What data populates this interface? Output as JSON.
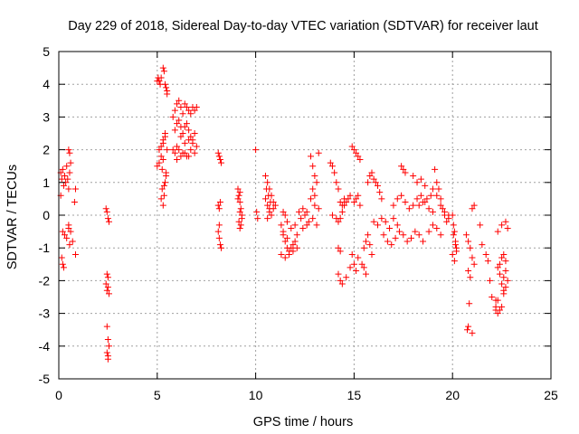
{
  "chart_data": {
    "type": "scatter",
    "title": "Day 229 of 2018, Sidereal Day-to-day VTEC variation (SDTVAR) for receiver laut",
    "xlabel": "GPS time / hours",
    "ylabel": "SDTVAR / TECUs",
    "xlim": [
      0,
      25
    ],
    "ylim": [
      -5,
      5
    ],
    "xticks": [
      "0",
      "5",
      "10",
      "15",
      "20",
      "25"
    ],
    "yticks": [
      "-5",
      "-4",
      "-3",
      "-2",
      "-1",
      "0",
      "1",
      "2",
      "3",
      "4",
      "5"
    ],
    "grid": true,
    "marker": "+",
    "color": "#ff0000",
    "series": [
      {
        "name": "SDTVAR",
        "x": [
          0.1,
          0.15,
          0.2,
          0.25,
          0.3,
          0.35,
          0.4,
          0.45,
          0.5,
          0.55,
          0.1,
          0.2,
          0.3,
          0.4,
          0.5,
          0.6,
          0.7,
          0.15,
          0.2,
          0.25,
          0.5,
          0.55,
          0.6,
          0.8,
          0.85,
          0.85,
          0.5,
          0.55,
          2.4,
          2.45,
          2.5,
          2.55,
          2.4,
          2.45,
          2.5,
          2.5,
          2.45,
          2.55,
          2.45,
          2.5,
          2.55,
          2.45,
          2.5,
          2.5,
          5.0,
          5.05,
          5.1,
          5.15,
          5.2,
          5.3,
          5.35,
          5.4,
          5.45,
          5.5,
          5.5,
          5.4,
          5.3,
          5.2,
          5.1,
          5.0,
          5.1,
          5.2,
          5.3,
          5.4,
          5.5,
          5.45,
          5.35,
          5.25,
          5.2,
          5.3,
          5.35,
          5.4,
          5.45,
          5.3,
          5.25,
          5.8,
          5.9,
          6.0,
          6.1,
          6.2,
          6.3,
          6.4,
          6.5,
          6.6,
          6.7,
          6.8,
          6.9,
          7.0,
          5.9,
          6.0,
          6.1,
          6.2,
          6.3,
          6.4,
          6.5,
          6.6,
          6.7,
          6.8,
          6.9,
          5.8,
          5.9,
          6.0,
          6.1,
          6.3,
          6.5,
          6.7,
          6.9,
          7.0,
          6.2,
          6.4,
          6.6,
          6.8,
          6.0,
          6.2,
          6.4,
          6.6,
          8.1,
          8.15,
          8.2,
          8.25,
          8.1,
          8.15,
          8.2,
          8.1,
          8.15,
          8.2,
          8.25,
          8.15,
          9.1,
          9.15,
          9.2,
          9.25,
          9.3,
          9.15,
          9.2,
          9.25,
          9.1,
          9.2,
          9.3,
          9.2,
          10.0,
          10.05,
          10.1,
          10.5,
          10.6,
          10.7,
          10.8,
          10.9,
          11.0,
          10.5,
          10.6,
          10.7,
          10.8,
          10.9,
          10.55,
          10.65,
          10.75,
          10.6,
          10.7,
          11.3,
          11.4,
          11.5,
          11.6,
          11.7,
          11.8,
          11.9,
          12.0,
          12.1,
          11.4,
          11.5,
          11.6,
          11.8,
          12.0,
          11.3,
          11.5,
          11.7,
          11.9,
          12.1,
          11.4,
          11.6,
          12.2,
          12.3,
          12.4,
          12.5,
          12.6,
          12.7,
          12.4,
          12.6,
          12.8,
          12.9,
          13.0,
          13.1,
          12.8,
          13.0,
          13.2,
          12.9,
          13.1,
          13.2,
          12.9,
          13.0,
          13.8,
          13.9,
          14.0,
          14.1,
          14.2,
          14.3,
          14.4,
          14.5,
          14.2,
          14.3,
          13.9,
          14.1,
          14.2,
          14.3,
          14.4,
          14.5,
          14.6,
          14.7,
          14.8,
          14.2,
          14.3,
          14.4,
          14.6,
          14.8,
          14.9,
          15.0,
          15.1,
          15.2,
          15.3,
          15.0,
          15.1,
          15.2,
          15.3,
          14.9,
          15.0,
          15.1,
          15.2,
          15.4,
          15.5,
          15.6,
          15.5,
          15.6,
          15.7,
          15.8,
          15.9,
          15.7,
          15.8,
          15.9,
          16.0,
          16.1,
          16.2,
          16.3,
          16.4,
          16.0,
          16.2,
          16.4,
          16.6,
          16.8,
          17.0,
          17.2,
          16.5,
          16.7,
          16.9,
          17.1,
          17.3,
          17.5,
          17.7,
          17.9,
          18.1,
          18.3,
          18.5,
          17.0,
          17.2,
          17.4,
          17.6,
          17.8,
          18.0,
          18.2,
          18.4,
          18.6,
          18.8,
          19.0,
          17.4,
          17.5,
          17.6,
          18.0,
          18.2,
          18.4,
          18.6,
          18.3,
          18.5,
          18.7,
          18.9,
          19.1,
          19.2,
          19.3,
          19.4,
          19.5,
          19.6,
          19.7,
          19.8,
          19.0,
          19.2,
          19.4,
          19.6,
          19.8,
          18.8,
          19.0,
          19.2,
          19.4,
          20.0,
          20.05,
          20.1,
          20.15,
          20.2,
          20.0,
          20.1,
          20.2,
          20.05,
          20.15,
          20.7,
          20.8,
          20.9,
          21.0,
          21.1,
          20.8,
          20.9,
          21.0,
          20.85,
          20.75,
          20.8,
          21.1,
          21.0,
          21.4,
          21.5,
          21.7,
          21.8,
          21.9,
          22.0,
          22.2,
          22.3,
          22.4,
          22.5,
          22.6,
          22.7,
          22.8,
          22.3,
          22.4,
          22.5,
          22.6,
          22.7,
          22.4,
          22.5,
          22.6,
          22.2,
          22.3,
          22.6,
          22.7,
          22.3,
          22.5,
          22.7,
          22.8,
          22.2
        ],
        "y": [
          1.3,
          1.1,
          1.4,
          0.9,
          1.2,
          1.0,
          1.5,
          1.1,
          0.8,
          1.3,
          0.6,
          -0.5,
          -0.6,
          -0.7,
          -0.3,
          -0.5,
          -0.8,
          -1.3,
          -1.5,
          -1.6,
          2.0,
          1.9,
          1.6,
          0.4,
          -1.2,
          0.8,
          -0.4,
          -0.9,
          0.2,
          0.1,
          -0.1,
          -0.2,
          -2.1,
          -2.3,
          -2.2,
          -1.9,
          -1.8,
          -2.4,
          -3.4,
          -3.8,
          -4.0,
          -4.2,
          -4.3,
          -4.4,
          4.1,
          4.2,
          4.1,
          4.0,
          4.2,
          4.5,
          4.4,
          4.0,
          3.9,
          3.7,
          3.8,
          2.5,
          2.3,
          2.1,
          2.0,
          1.5,
          1.6,
          1.8,
          2.2,
          2.4,
          2.0,
          1.2,
          0.9,
          0.8,
          0.5,
          0.3,
          0.6,
          1.0,
          1.3,
          1.7,
          1.4,
          3.0,
          3.2,
          3.4,
          3.5,
          3.3,
          3.1,
          3.4,
          3.3,
          3.2,
          3.1,
          3.3,
          3.2,
          3.3,
          2.6,
          2.8,
          2.9,
          2.7,
          2.5,
          2.7,
          2.8,
          2.6,
          2.4,
          2.3,
          2.5,
          2.0,
          1.9,
          2.1,
          2.0,
          1.9,
          1.8,
          2.0,
          1.9,
          2.1,
          2.4,
          2.2,
          2.3,
          2.2,
          1.7,
          1.8,
          1.9,
          1.8,
          1.9,
          1.8,
          1.7,
          1.6,
          0.3,
          0.2,
          0.4,
          -0.5,
          -0.7,
          -0.9,
          -1.0,
          -0.3,
          0.8,
          0.6,
          0.4,
          0.2,
          0.0,
          -0.2,
          -0.4,
          -0.3,
          0.5,
          0.1,
          -0.1,
          0.7,
          2.0,
          0.1,
          -0.1,
          1.2,
          1.0,
          0.8,
          0.6,
          0.4,
          0.3,
          0.5,
          0.3,
          0.1,
          0.0,
          0.2,
          0.8,
          0.6,
          0.4,
          -0.1,
          0.2,
          -0.3,
          -0.6,
          -0.8,
          -1.0,
          -1.1,
          -1.0,
          -0.9,
          -0.8,
          -0.6,
          0.1,
          0.0,
          -0.2,
          -0.4,
          -0.3,
          -1.2,
          -1.3,
          -1.2,
          -1.1,
          -1.0,
          -0.5,
          -0.7,
          0.1,
          -0.1,
          0.2,
          0.0,
          0.1,
          -0.2,
          -0.4,
          -0.3,
          1.8,
          1.5,
          1.2,
          1.0,
          0.5,
          0.3,
          0.2,
          -0.1,
          -0.3,
          1.9,
          0.8,
          0.6,
          1.6,
          1.5,
          1.3,
          1.0,
          0.8,
          0.4,
          0.3,
          0.5,
          -1.0,
          -1.1,
          0.0,
          -0.1,
          -0.2,
          -0.1,
          0.1,
          0.3,
          0.4,
          0.5,
          0.6,
          -1.8,
          -2.0,
          -2.1,
          -1.9,
          -1.6,
          2.1,
          2.0,
          1.9,
          1.8,
          1.7,
          0.4,
          0.5,
          0.6,
          0.3,
          -1.2,
          -1.5,
          -1.7,
          -1.3,
          -1.5,
          -1.6,
          -1.8,
          -1.0,
          -0.8,
          -0.6,
          -0.9,
          -1.2,
          1.0,
          1.2,
          1.3,
          1.1,
          1.0,
          0.9,
          0.7,
          0.5,
          -0.2,
          -0.3,
          -0.1,
          -0.2,
          -0.4,
          -0.1,
          -0.3,
          -0.6,
          -0.8,
          -0.9,
          -0.7,
          -0.5,
          -0.6,
          -0.8,
          -0.7,
          -0.5,
          -0.6,
          -0.8,
          0.3,
          0.5,
          0.6,
          0.4,
          0.2,
          0.3,
          0.5,
          0.6,
          0.4,
          0.2,
          0.1,
          1.5,
          1.4,
          1.3,
          1.2,
          1.0,
          1.1,
          0.9,
          0.3,
          0.4,
          0.5,
          0.6,
          1.4,
          1.0,
          0.8,
          0.5,
          0.2,
          0.0,
          -0.2,
          -0.1,
          0.8,
          0.6,
          0.3,
          0.1,
          0.0,
          -0.5,
          -0.3,
          -0.4,
          -0.6,
          0.0,
          -0.3,
          -0.5,
          -0.8,
          -1.0,
          -1.2,
          -1.4,
          -1.1,
          -0.6,
          -0.9,
          -0.6,
          -0.8,
          -1.0,
          -1.3,
          -1.5,
          -1.7,
          -1.9,
          0.2,
          -2.7,
          -3.5,
          -3.4,
          0.3,
          -3.6,
          -0.3,
          -0.9,
          -1.2,
          -1.4,
          -2.0,
          -2.5,
          -2.8,
          -2.6,
          -2.9,
          -2.8,
          -2.4,
          -2.2,
          -2.0,
          -1.6,
          -1.5,
          -1.3,
          -1.2,
          -1.4,
          -1.8,
          -2.1,
          -2.3,
          -2.9,
          -3.0,
          -1.9,
          -1.7,
          -0.5,
          -0.3,
          -0.2,
          -0.4,
          -2.6
        ]
      }
    ]
  }
}
